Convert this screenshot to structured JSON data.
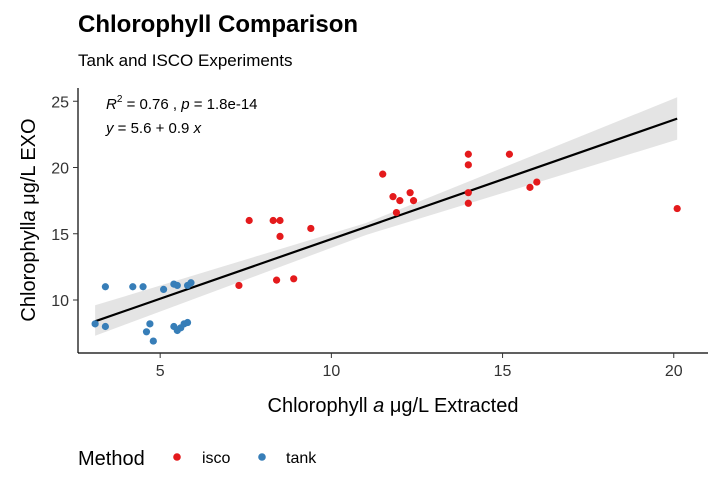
{
  "chart_data": {
    "type": "scatter",
    "title": "Chlorophyll Comparison",
    "subtitle": "Tank and ISCO Experiments",
    "xlabel_parts": [
      "Chlorophyll ",
      "a",
      " μg/L Extracted"
    ],
    "ylabel_parts": [
      "Chlorophyll",
      "a",
      " μg/L EXO"
    ],
    "xlim": [
      2.6,
      21.0
    ],
    "ylim": [
      6.0,
      26.0
    ],
    "x_ticks": [
      5,
      10,
      15,
      20
    ],
    "y_ticks": [
      10,
      15,
      20,
      25
    ],
    "grid": false,
    "legend": {
      "title": "Method",
      "position": "bottom-left",
      "entries": [
        {
          "label": "isco",
          "color": "#E41A1C"
        },
        {
          "label": "tank",
          "color": "#377EB8"
        }
      ]
    },
    "annotations": {
      "stats": [
        "R",
        "2",
        " = 0.76 ,  ",
        "p",
        " = 1.8e-14"
      ],
      "equation": [
        "y",
        " = 5.6 + 0.9 ",
        "x"
      ]
    },
    "regression": {
      "intercept": 5.6,
      "slope": 0.9,
      "x_range": [
        3.1,
        20.1
      ],
      "ci_lower": [
        [
          3.1,
          7.3
        ],
        [
          11.0,
          14.9
        ],
        [
          20.1,
          22.1
        ]
      ],
      "ci_upper": [
        [
          3.1,
          9.6
        ],
        [
          11.0,
          15.8
        ],
        [
          20.1,
          25.3
        ]
      ]
    },
    "series": [
      {
        "name": "isco",
        "color": "#E41A1C",
        "points": [
          [
            7.3,
            11.1
          ],
          [
            7.6,
            16.0
          ],
          [
            8.3,
            16.0
          ],
          [
            8.5,
            16.0
          ],
          [
            8.4,
            11.5
          ],
          [
            8.5,
            14.8
          ],
          [
            8.9,
            11.6
          ],
          [
            9.4,
            15.4
          ],
          [
            11.5,
            19.5
          ],
          [
            11.8,
            17.8
          ],
          [
            11.9,
            16.6
          ],
          [
            12.0,
            17.5
          ],
          [
            12.3,
            18.1
          ],
          [
            12.4,
            17.5
          ],
          [
            14.0,
            21.0
          ],
          [
            14.0,
            20.2
          ],
          [
            14.0,
            18.1
          ],
          [
            14.0,
            17.3
          ],
          [
            15.2,
            21.0
          ],
          [
            15.8,
            18.5
          ],
          [
            16.0,
            18.9
          ],
          [
            20.1,
            16.9
          ]
        ]
      },
      {
        "name": "tank",
        "color": "#377EB8",
        "points": [
          [
            3.1,
            8.2
          ],
          [
            3.4,
            11.0
          ],
          [
            3.4,
            8.0
          ],
          [
            4.2,
            11.0
          ],
          [
            4.5,
            11.0
          ],
          [
            4.6,
            7.6
          ],
          [
            4.7,
            8.2
          ],
          [
            4.8,
            6.9
          ],
          [
            5.1,
            10.8
          ],
          [
            5.4,
            11.2
          ],
          [
            5.5,
            11.1
          ],
          [
            5.4,
            8.0
          ],
          [
            5.5,
            7.7
          ],
          [
            5.6,
            7.9
          ],
          [
            5.7,
            8.2
          ],
          [
            5.8,
            8.3
          ],
          [
            5.8,
            11.1
          ],
          [
            5.9,
            11.3
          ]
        ]
      }
    ]
  }
}
